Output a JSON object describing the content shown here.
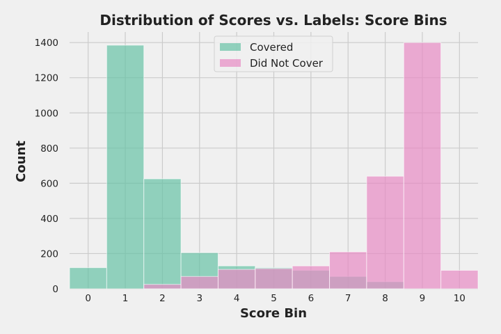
{
  "chart_data": {
    "type": "bar",
    "title": "Distribution of Scores vs. Labels: Score Bins",
    "xlabel": "Score Bin",
    "ylabel": "Count",
    "categories": [
      "0",
      "1",
      "2",
      "3",
      "4",
      "5",
      "6",
      "7",
      "8",
      "9",
      "10"
    ],
    "ylim": [
      0,
      1460
    ],
    "yticks": [
      0,
      200,
      400,
      600,
      800,
      1000,
      1200,
      1400
    ],
    "grid": true,
    "legend_position": "top-center",
    "overlay": true,
    "series": [
      {
        "name": "Covered",
        "color": "#66c2a5",
        "values": [
          120,
          1385,
          625,
          205,
          130,
          120,
          105,
          70,
          40,
          0,
          0
        ]
      },
      {
        "name": "Did Not Cover",
        "color": "#e78ac3",
        "values": [
          0,
          0,
          25,
          70,
          110,
          115,
          130,
          210,
          640,
          1400,
          105
        ]
      }
    ]
  }
}
